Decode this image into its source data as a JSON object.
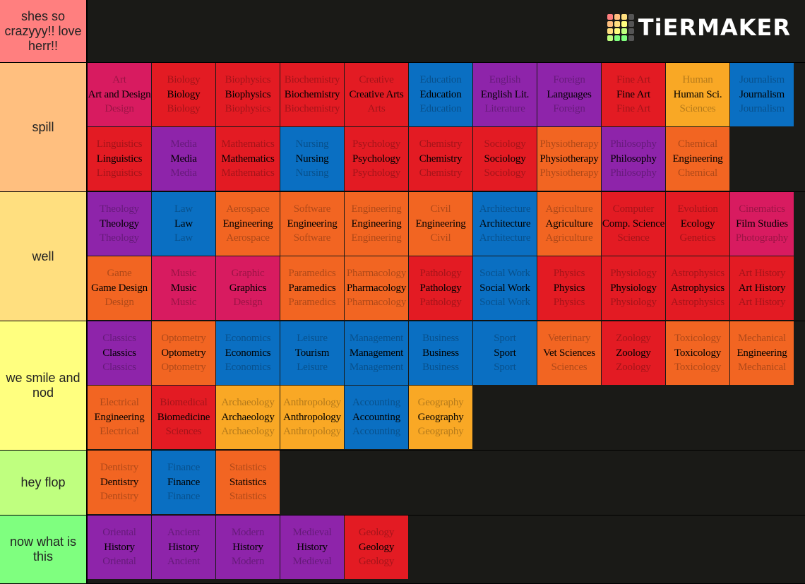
{
  "logo": "TiERMAKER",
  "tiers": [
    {
      "label": "shes so crazyyy!! love herr!!",
      "color": "#ff7f7f",
      "items": []
    },
    {
      "label": "spill",
      "color": "#ffbf7f",
      "items": [
        {
          "top": "Art",
          "main": "Art and Design",
          "bottom": "Design",
          "color": "#d81b60"
        },
        {
          "top": "Biology",
          "main": "Biology",
          "bottom": "Biology",
          "color": "#e31b23"
        },
        {
          "top": "Biophysics",
          "main": "Biophysics",
          "bottom": "Biophysics",
          "color": "#e31b23"
        },
        {
          "top": "Biochemistry",
          "main": "Biochemistry",
          "bottom": "Biochemistry",
          "color": "#e31b23"
        },
        {
          "top": "Creative",
          "main": "Creative Arts",
          "bottom": "Arts",
          "color": "#e31b23"
        },
        {
          "top": "Education",
          "main": "Education",
          "bottom": "Education",
          "color": "#0a6fc2"
        },
        {
          "top": "English",
          "main": "English Lit.",
          "bottom": "Literature",
          "color": "#8e24aa"
        },
        {
          "top": "Foreign",
          "main": "Languages",
          "bottom": "Foreign",
          "color": "#8e24aa"
        },
        {
          "top": "Fine Art",
          "main": "Fine Art",
          "bottom": "Fine Art",
          "color": "#e31b23"
        },
        {
          "top": "Human",
          "main": "Human Sci.",
          "bottom": "Sciences",
          "color": "#f9a825"
        },
        {
          "top": "Journalism",
          "main": "Journalism",
          "bottom": "Journalism",
          "color": "#0a6fc2"
        },
        {
          "top": "Linguistics",
          "main": "Linguistics",
          "bottom": "Linguistics",
          "color": "#e31b23"
        },
        {
          "top": "Media",
          "main": "Media",
          "bottom": "Media",
          "color": "#8e24aa"
        },
        {
          "top": "Mathematics",
          "main": "Mathematics",
          "bottom": "Mathematics",
          "color": "#e31b23"
        },
        {
          "top": "Nursing",
          "main": "Nursing",
          "bottom": "Nursing",
          "color": "#0a6fc2"
        },
        {
          "top": "Psychology",
          "main": "Psychology",
          "bottom": "Psychology",
          "color": "#e31b23"
        },
        {
          "top": "Chemistry",
          "main": "Chemistry",
          "bottom": "Chemistry",
          "color": "#e31b23"
        },
        {
          "top": "Sociology",
          "main": "Sociology",
          "bottom": "Sociology",
          "color": "#e31b23"
        },
        {
          "top": "Physiotherapy",
          "main": "Physiotherapy",
          "bottom": "Physiotherapy",
          "color": "#f26522"
        },
        {
          "top": "Philosophy",
          "main": "Philosophy",
          "bottom": "Philosophy",
          "color": "#8e24aa"
        },
        {
          "top": "Chemical",
          "main": "Engineering",
          "bottom": "Chemical",
          "color": "#f26522"
        }
      ]
    },
    {
      "label": "well",
      "color": "#ffdf7f",
      "items": [
        {
          "top": "Theology",
          "main": "Theology",
          "bottom": "Theology",
          "color": "#8e24aa"
        },
        {
          "top": "Law",
          "main": "Law",
          "bottom": "Law",
          "color": "#0a6fc2"
        },
        {
          "top": "Aerospace",
          "main": "Engineering",
          "bottom": "Aerospace",
          "color": "#f26522"
        },
        {
          "top": "Software",
          "main": "Engineering",
          "bottom": "Software",
          "color": "#f26522"
        },
        {
          "top": "Engineering",
          "main": "Engineering",
          "bottom": "Engineering",
          "color": "#f26522"
        },
        {
          "top": "Civil",
          "main": "Engineering",
          "bottom": "Civil",
          "color": "#f26522"
        },
        {
          "top": "Architecture",
          "main": "Architecture",
          "bottom": "Architecture",
          "color": "#0a6fc2"
        },
        {
          "top": "Agriculture",
          "main": "Agriculture",
          "bottom": "Agriculture",
          "color": "#f26522"
        },
        {
          "top": "Computer",
          "main": "Comp. Science",
          "bottom": "Science",
          "color": "#e31b23"
        },
        {
          "top": "Evolution",
          "main": "Ecology",
          "bottom": "Genetics",
          "color": "#e31b23"
        },
        {
          "top": "Cinematics",
          "main": "Film Studies",
          "bottom": "Photography",
          "color": "#d81b60"
        },
        {
          "top": "Game",
          "main": "Game Design",
          "bottom": "Design",
          "color": "#f26522"
        },
        {
          "top": "Music",
          "main": "Music",
          "bottom": "Music",
          "color": "#d81b60"
        },
        {
          "top": "Graphic",
          "main": "Graphics",
          "bottom": "Design",
          "color": "#d81b60"
        },
        {
          "top": "Paramedics",
          "main": "Paramedics",
          "bottom": "Paramedics",
          "color": "#f26522"
        },
        {
          "top": "Pharmacology",
          "main": "Pharmacology",
          "bottom": "Pharmacology",
          "color": "#f26522"
        },
        {
          "top": "Pathology",
          "main": "Pathology",
          "bottom": "Pathology",
          "color": "#e31b23"
        },
        {
          "top": "Social Work",
          "main": "Social Work",
          "bottom": "Social Work",
          "color": "#0a6fc2"
        },
        {
          "top": "Physics",
          "main": "Physics",
          "bottom": "Physics",
          "color": "#e31b23"
        },
        {
          "top": "Physiology",
          "main": "Physiology",
          "bottom": "Physiology",
          "color": "#e31b23"
        },
        {
          "top": "Astrophysics",
          "main": "Astrophysics",
          "bottom": "Astrophysics",
          "color": "#e31b23"
        },
        {
          "top": "Art History",
          "main": "Art History",
          "bottom": "Art History",
          "color": "#e31b23"
        }
      ]
    },
    {
      "label": "we smile and nod",
      "color": "#ffff7f",
      "items": [
        {
          "top": "Classics",
          "main": "Classics",
          "bottom": "Classics",
          "color": "#8e24aa"
        },
        {
          "top": "Optometry",
          "main": "Optometry",
          "bottom": "Optometry",
          "color": "#f26522"
        },
        {
          "top": "Economics",
          "main": "Economics",
          "bottom": "Economics",
          "color": "#0a6fc2"
        },
        {
          "top": "Leisure",
          "main": "Tourism",
          "bottom": "Leisure",
          "color": "#0a6fc2"
        },
        {
          "top": "Management",
          "main": "Management",
          "bottom": "Management",
          "color": "#0a6fc2"
        },
        {
          "top": "Business",
          "main": "Business",
          "bottom": "Business",
          "color": "#0a6fc2"
        },
        {
          "top": "Sport",
          "main": "Sport",
          "bottom": "Sport",
          "color": "#0a6fc2"
        },
        {
          "top": "Veterinary",
          "main": "Vet Sciences",
          "bottom": "Sciences",
          "color": "#f26522"
        },
        {
          "top": "Zoology",
          "main": "Zoology",
          "bottom": "Zoology",
          "color": "#e31b23"
        },
        {
          "top": "Toxicology",
          "main": "Toxicology",
          "bottom": "Toxicology",
          "color": "#f26522"
        },
        {
          "top": "Mechanical",
          "main": "Engineering",
          "bottom": "Mechanical",
          "color": "#f26522"
        },
        {
          "top": "Electrical",
          "main": "Engineering",
          "bottom": "Electrical",
          "color": "#f26522"
        },
        {
          "top": "Biomedical",
          "main": "Biomedicine",
          "bottom": "Sciences",
          "color": "#e31b23"
        },
        {
          "top": "Archaeology",
          "main": "Archaeology",
          "bottom": "Archaeology",
          "color": "#f9a825"
        },
        {
          "top": "Anthropology",
          "main": "Anthropology",
          "bottom": "Anthropology",
          "color": "#f9a825"
        },
        {
          "top": "Accounting",
          "main": "Accounting",
          "bottom": "Accounting",
          "color": "#0a6fc2"
        },
        {
          "top": "Geography",
          "main": "Geography",
          "bottom": "Geography",
          "color": "#f9a825"
        }
      ]
    },
    {
      "label": "hey flop",
      "color": "#bfff7f",
      "items": [
        {
          "top": "Dentistry",
          "main": "Dentistry",
          "bottom": "Dentistry",
          "color": "#f26522"
        },
        {
          "top": "Finance",
          "main": "Finance",
          "bottom": "Finance",
          "color": "#0a6fc2"
        },
        {
          "top": "Statistics",
          "main": "Statistics",
          "bottom": "Statistics",
          "color": "#f26522"
        }
      ]
    },
    {
      "label": "now what is this",
      "color": "#7fff7f",
      "items": [
        {
          "top": "Oriental",
          "main": "History",
          "bottom": "Oriental",
          "color": "#8e24aa"
        },
        {
          "top": "Ancient",
          "main": "History",
          "bottom": "Ancient",
          "color": "#8e24aa"
        },
        {
          "top": "Modern",
          "main": "History",
          "bottom": "Modern",
          "color": "#8e24aa"
        },
        {
          "top": "Medieval",
          "main": "History",
          "bottom": "Medieval",
          "color": "#8e24aa"
        },
        {
          "top": "Geology",
          "main": "Geology",
          "bottom": "Geology",
          "color": "#e31b23"
        }
      ]
    }
  ]
}
